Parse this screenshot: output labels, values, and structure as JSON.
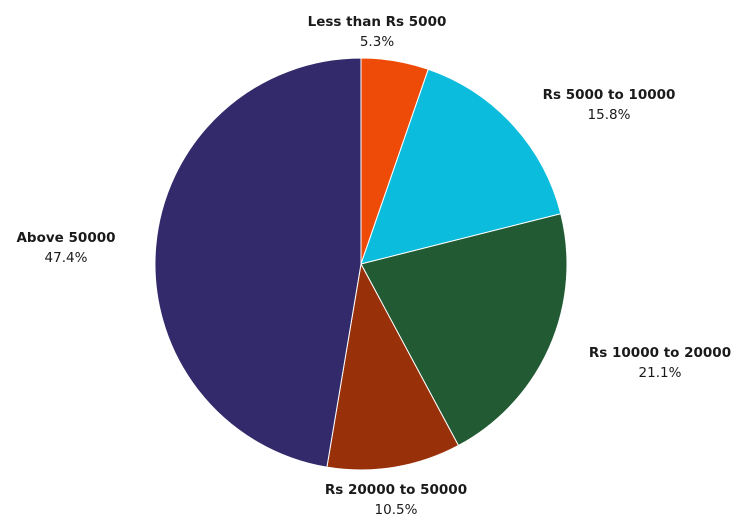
{
  "chart_data": {
    "type": "pie",
    "title": "",
    "start_angle_deg": 0,
    "direction": "clockwise",
    "legend": "none",
    "slices": [
      {
        "label": "Less than Rs 5000",
        "value": 5.3,
        "value_label": "5.3%",
        "color": "#EE4B08"
      },
      {
        "label": "Rs 5000 to 10000",
        "value": 15.8,
        "value_label": "15.8%",
        "color": "#0BBCDD"
      },
      {
        "label": "Rs 10000 to 20000",
        "value": 21.1,
        "value_label": "21.1%",
        "color": "#215A33"
      },
      {
        "label": "Rs 20000 to 50000",
        "value": 10.5,
        "value_label": "10.5%",
        "color": "#98300A"
      },
      {
        "label": "Above 50000",
        "value": 47.4,
        "value_label": "47.4%",
        "color": "#322A6A"
      }
    ]
  }
}
